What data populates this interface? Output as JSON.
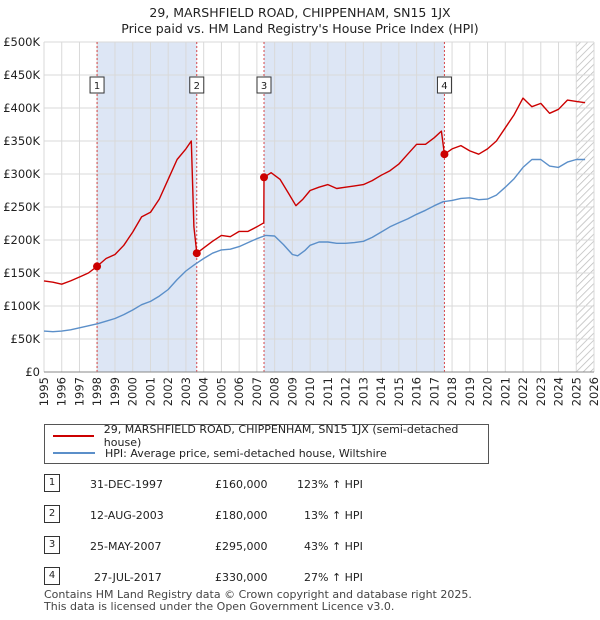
{
  "title_line1": "29, MARSHFIELD ROAD, CHIPPENHAM, SN15 1JX",
  "title_line2": "Price paid vs. HM Land Registry's House Price Index (HPI)",
  "legend": {
    "property_label": "29, MARSHFIELD ROAD, CHIPPENHAM, SN15 1JX (semi-detached house)",
    "hpi_label": "HPI: Average price, semi-detached house, Wiltshire"
  },
  "sales": [
    {
      "num": "1",
      "date": "31-DEC-1997",
      "price": "£160,000",
      "hpi": "123% ↑ HPI"
    },
    {
      "num": "2",
      "date": "12-AUG-2003",
      "price": "£180,000",
      "hpi": "13% ↑ HPI"
    },
    {
      "num": "3",
      "date": "25-MAY-2007",
      "price": "£295,000",
      "hpi": "43% ↑ HPI"
    },
    {
      "num": "4",
      "date": "27-JUL-2017",
      "price": "£330,000",
      "hpi": "27% ↑ HPI"
    }
  ],
  "footer_line1": "Contains HM Land Registry data © Crown copyright and database right 2025.",
  "footer_line2": "This data is licensed under the Open Government Licence v3.0.",
  "colors": {
    "property": "#cc0000",
    "hpi": "#5b8fc9",
    "shade": "#dde6f5",
    "grid": "#d9d9d9"
  },
  "chart_data": {
    "type": "line",
    "title": "29, MARSHFIELD ROAD, CHIPPENHAM, SN15 1JX — Price paid vs. HM Land Registry's House Price Index (HPI)",
    "xlabel": "",
    "ylabel": "",
    "xlim": [
      1995,
      2026
    ],
    "ylim": [
      0,
      500000
    ],
    "yticks": [
      0,
      50000,
      100000,
      150000,
      200000,
      250000,
      300000,
      350000,
      400000,
      450000,
      500000
    ],
    "ytick_labels": [
      "£0",
      "£50K",
      "£100K",
      "£150K",
      "£200K",
      "£250K",
      "£300K",
      "£350K",
      "£400K",
      "£450K",
      "£500K"
    ],
    "xticks": [
      1995,
      1996,
      1997,
      1998,
      1999,
      2000,
      2001,
      2002,
      2003,
      2004,
      2005,
      2006,
      2007,
      2008,
      2009,
      2010,
      2011,
      2012,
      2013,
      2014,
      2015,
      2016,
      2017,
      2018,
      2019,
      2020,
      2021,
      2022,
      2023,
      2024,
      2025,
      2026
    ],
    "shaded_ranges": [
      [
        1997.99,
        2003.61
      ],
      [
        2007.4,
        2017.57
      ]
    ],
    "hatched_from": 2025.0,
    "sale_markers": [
      {
        "label": "1",
        "x": 1997.99,
        "y": 160000
      },
      {
        "label": "2",
        "x": 2003.61,
        "y": 180000
      },
      {
        "label": "3",
        "x": 2007.4,
        "y": 295000
      },
      {
        "label": "4",
        "x": 2017.57,
        "y": 330000
      }
    ],
    "series": [
      {
        "name": "29, MARSHFIELD ROAD, CHIPPENHAM, SN15 1JX (semi-detached house)",
        "color": "#cc0000",
        "x": [
          1995.0,
          1995.5,
          1996.0,
          1996.5,
          1997.0,
          1997.5,
          1997.99,
          1998.5,
          1999.0,
          1999.5,
          2000.0,
          2000.5,
          2001.0,
          2001.5,
          2002.0,
          2002.5,
          2003.0,
          2003.3,
          2003.45,
          2003.61,
          2004.0,
          2004.5,
          2005.0,
          2005.5,
          2006.0,
          2006.5,
          2007.0,
          2007.39,
          2007.4,
          2007.8,
          2008.3,
          2008.8,
          2009.2,
          2009.6,
          2010.0,
          2010.5,
          2011.0,
          2011.5,
          2012.0,
          2012.5,
          2013.0,
          2013.5,
          2014.0,
          2014.5,
          2015.0,
          2015.5,
          2016.0,
          2016.5,
          2017.0,
          2017.4,
          2017.57,
          2018.0,
          2018.5,
          2019.0,
          2019.5,
          2020.0,
          2020.5,
          2021.0,
          2021.5,
          2022.0,
          2022.5,
          2023.0,
          2023.5,
          2024.0,
          2024.5,
          2025.0,
          2025.5
        ],
        "y": [
          138000,
          136000,
          133000,
          138000,
          144000,
          150000,
          160000,
          172000,
          178000,
          192000,
          212000,
          235000,
          242000,
          262000,
          292000,
          322000,
          338000,
          350000,
          220000,
          180000,
          188000,
          198000,
          207000,
          205000,
          213000,
          213000,
          220000,
          226000,
          295000,
          302000,
          292000,
          270000,
          252000,
          262000,
          275000,
          280000,
          284000,
          278000,
          280000,
          282000,
          284000,
          290000,
          298000,
          305000,
          315000,
          330000,
          345000,
          345000,
          355000,
          365000,
          330000,
          338000,
          343000,
          335000,
          330000,
          338000,
          350000,
          370000,
          390000,
          415000,
          402000,
          407000,
          392000,
          398000,
          412000,
          410000,
          408000
        ]
      },
      {
        "name": "HPI: Average price, semi-detached house, Wiltshire",
        "color": "#5b8fc9",
        "x": [
          1995.0,
          1995.5,
          1996.0,
          1996.5,
          1997.0,
          1997.5,
          1998.0,
          1998.5,
          1999.0,
          1999.5,
          2000.0,
          2000.5,
          2001.0,
          2001.5,
          2002.0,
          2002.5,
          2003.0,
          2003.5,
          2004.0,
          2004.5,
          2005.0,
          2005.5,
          2006.0,
          2006.5,
          2007.0,
          2007.5,
          2008.0,
          2008.5,
          2009.0,
          2009.3,
          2009.7,
          2010.0,
          2010.5,
          2011.0,
          2011.5,
          2012.0,
          2012.5,
          2013.0,
          2013.5,
          2014.0,
          2014.5,
          2015.0,
          2015.5,
          2016.0,
          2016.5,
          2017.0,
          2017.5,
          2018.0,
          2018.5,
          2019.0,
          2019.5,
          2020.0,
          2020.5,
          2021.0,
          2021.5,
          2022.0,
          2022.5,
          2023.0,
          2023.5,
          2024.0,
          2024.5,
          2025.0,
          2025.5
        ],
        "y": [
          62000,
          61000,
          62000,
          64000,
          67000,
          70000,
          73000,
          77000,
          81000,
          87000,
          94000,
          102000,
          107000,
          115000,
          125000,
          140000,
          153000,
          163000,
          172000,
          180000,
          185000,
          186000,
          190000,
          196000,
          202000,
          207000,
          206000,
          193000,
          178000,
          176000,
          184000,
          192000,
          197000,
          197000,
          195000,
          195000,
          196000,
          198000,
          204000,
          212000,
          220000,
          226000,
          232000,
          239000,
          245000,
          252000,
          258000,
          260000,
          263000,
          264000,
          261000,
          262000,
          268000,
          280000,
          293000,
          310000,
          322000,
          322000,
          312000,
          310000,
          318000,
          322000,
          322000
        ]
      }
    ]
  }
}
